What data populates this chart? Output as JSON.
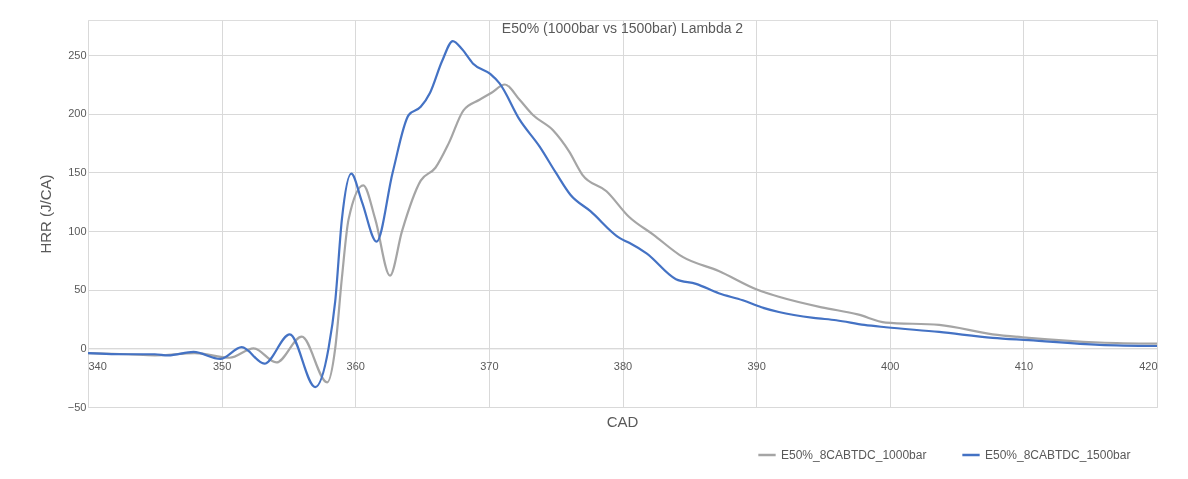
{
  "chart_data": {
    "type": "line",
    "title": "E50% (1000bar vs 1500bar) Lambda 2",
    "xlabel": "CAD",
    "ylabel": "HRR (J/CA)",
    "xlim": [
      340,
      420
    ],
    "xticks": [
      340,
      350,
      360,
      370,
      380,
      390,
      400,
      410,
      420
    ],
    "ylim": [
      -50,
      280
    ],
    "yticks": [
      -50,
      0,
      50,
      100,
      150,
      200,
      250
    ],
    "grid": true,
    "legend": "bottom right",
    "line_style": "solid",
    "marker": "none",
    "series": [
      {
        "name": "E50%_8CABTDC_1000bar",
        "color": "#a5a5a5",
        "x": [
          340,
          343,
          345,
          348,
          350.6,
          352.4,
          354.1,
          356.0,
          357.9,
          358.5,
          359.0,
          359.5,
          360.6,
          361.5,
          362.6,
          363.5,
          364.9,
          366.0,
          367.0,
          368.1,
          369.3,
          370.2,
          371.2,
          372.3,
          373.3,
          374.8,
          376.0,
          377.0,
          378.8,
          380.5,
          382.3,
          384.5,
          387.2,
          390.1,
          391.7,
          394.9,
          397.6,
          399.7,
          403.7,
          407.7,
          410.4,
          415.7,
          420
        ],
        "values": [
          -4,
          -5,
          -6,
          -4,
          -8,
          0,
          -12,
          10,
          -29,
          0,
          60,
          110,
          139,
          110,
          62,
          100,
          143,
          154,
          175,
          203,
          212,
          218,
          225,
          212,
          199,
          186,
          168,
          148,
          134,
          112,
          97,
          78,
          66,
          50,
          44,
          35,
          29,
          22,
          20,
          12,
          9,
          5,
          4
        ]
      },
      {
        "name": "E50%_8CABTDC_1500bar",
        "color": "#4472c4",
        "x": [
          340,
          343,
          345,
          346,
          347.9,
          349.9,
          351.5,
          353.2,
          355.1,
          357.0,
          358.0,
          358.5,
          359.0,
          359.7,
          360.5,
          361.6,
          362.8,
          364.0,
          364.9,
          365.6,
          366.5,
          367.3,
          368.0,
          368.8,
          370.1,
          370.8,
          372.3,
          373.8,
          375.0,
          376.1,
          377.6,
          379.8,
          380.5,
          381.8,
          384.0,
          385.5,
          387.2,
          389.0,
          390.4,
          391.7,
          394.3,
          396.0,
          398.1,
          399.7,
          403.7,
          407.7,
          410.4,
          415.7,
          420
        ],
        "values": [
          -4,
          -5,
          -5,
          -6,
          -3,
          -9,
          1,
          -13,
          12,
          -33,
          0,
          40,
          110,
          149,
          125,
          91,
          150,
          199,
          206,
          218,
          245,
          262,
          255,
          243,
          234,
          226,
          195,
          172,
          150,
          131,
          117,
          94,
          90,
          81,
          59,
          55,
          47,
          41,
          35,
          31,
          26,
          24,
          20,
          18,
          14,
          9,
          7,
          3,
          2
        ]
      }
    ]
  }
}
